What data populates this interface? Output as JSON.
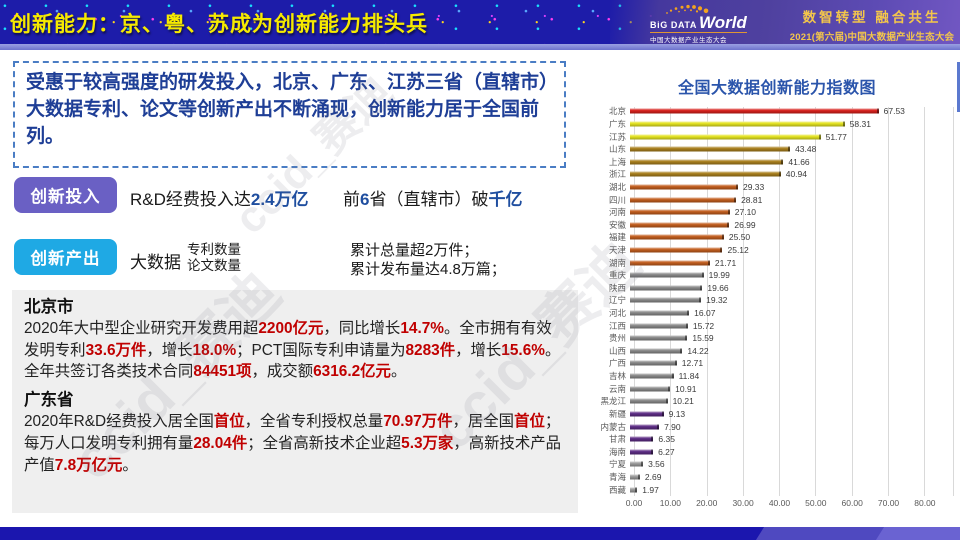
{
  "colors": {
    "red": "#c00000",
    "blue": "#1f4e9f",
    "badge_invest": "#6a60c4",
    "badge_output": "#1fa9e4",
    "chart_title": "#2b55ab",
    "header_title": "#f6ea00",
    "slogan": "#f3c64b"
  },
  "header": {
    "title": "创新能力：京、粤、苏成为创新能力排头兵",
    "logo": {
      "big": "BiG DATA",
      "world": "World",
      "subtitle": "中国大数据产业生态大会"
    },
    "slogan_line1": "数智转型 融合共生",
    "slogan_line2": "2021(第六届)中国大数据产业生态大会"
  },
  "intro": {
    "text": "受惠于较高强度的研发投入，北京、广东、江苏三省（直辖市）大数据专利、论文等创新产出不断涌现，创新能力居于全国前列。"
  },
  "investment": {
    "badge": "创新投入",
    "line1": [
      {
        "t": "R&D经费投入达"
      },
      {
        "t": "2.4万亿",
        "s": "blue"
      }
    ],
    "line2": [
      {
        "t": "前"
      },
      {
        "t": "6",
        "s": "blue"
      },
      {
        "t": "省（直辖市）破"
      },
      {
        "t": "千亿",
        "s": "blue"
      }
    ]
  },
  "output": {
    "badge": "创新产出",
    "bigdata_label": "大数据",
    "kind1": "专利数量",
    "kind2": "论文数量",
    "result1": "累计总量超2万件；",
    "result2": "累计发布量达4.8万篇；"
  },
  "beijing": {
    "heading": "北京市",
    "para": [
      {
        "t": "2020年大中型企业研究开发费用超"
      },
      {
        "t": "2200亿元",
        "s": "red"
      },
      {
        "t": "，同比增长"
      },
      {
        "t": "14.7%",
        "s": "red"
      },
      {
        "t": "。全市拥有有效发明专利"
      },
      {
        "t": "33.6万件",
        "s": "red"
      },
      {
        "t": "，增长"
      },
      {
        "t": "18.0%",
        "s": "red"
      },
      {
        "t": "；PCT国际专利申请量为"
      },
      {
        "t": "8283件",
        "s": "red"
      },
      {
        "t": "，增长"
      },
      {
        "t": "15.6%",
        "s": "red"
      },
      {
        "t": "。全年共签订各类技术合同"
      },
      {
        "t": "84451项",
        "s": "red"
      },
      {
        "t": "，成交额"
      },
      {
        "t": "6316.2亿元",
        "s": "red"
      },
      {
        "t": "。"
      }
    ]
  },
  "guangdong": {
    "heading": "广东省",
    "para": [
      {
        "t": "2020年R&D经费投入居全国"
      },
      {
        "t": "首位",
        "s": "red"
      },
      {
        "t": "，全省专利授权总量"
      },
      {
        "t": "70.97万件",
        "s": "red"
      },
      {
        "t": "，居全国"
      },
      {
        "t": "首位",
        "s": "red"
      },
      {
        "t": "；每万人口发明专利拥有量"
      },
      {
        "t": "28.04件",
        "s": "red"
      },
      {
        "t": "；全省高新技术企业超"
      },
      {
        "t": "5.3万家",
        "s": "red"
      },
      {
        "t": "，高新技术产品产值"
      },
      {
        "t": "7.8万亿元",
        "s": "red"
      },
      {
        "t": "。"
      }
    ]
  },
  "watermarks": [
    "ccid_赛迪",
    "ccid_赛迪",
    "ccid_赛迪"
  ],
  "chart_data": {
    "type": "bar",
    "orientation": "horizontal",
    "title": "全国大数据创新能力指数图",
    "xlim": [
      0,
      80
    ],
    "x_ticks": [
      "0.00",
      "10.00",
      "20.00",
      "30.00",
      "40.00",
      "50.00",
      "60.00",
      "70.00",
      "80.00"
    ],
    "grid": true,
    "bars": [
      {
        "label": "北京",
        "value": "67.53",
        "color": "#d8201c"
      },
      {
        "label": "广东",
        "value": "58.31",
        "color": "#e4e320"
      },
      {
        "label": "江苏",
        "value": "51.77",
        "color": "#e4e320"
      },
      {
        "label": "山东",
        "value": "43.48",
        "color": "#a97f1d"
      },
      {
        "label": "上海",
        "value": "41.66",
        "color": "#a97f1d"
      },
      {
        "label": "浙江",
        "value": "40.94",
        "color": "#a97f1d"
      },
      {
        "label": "湖北",
        "value": "29.33",
        "color": "#c35e1e"
      },
      {
        "label": "四川",
        "value": "28.81",
        "color": "#c35e1e"
      },
      {
        "label": "河南",
        "value": "27.10",
        "color": "#c35e1e"
      },
      {
        "label": "安徽",
        "value": "26.99",
        "color": "#c35e1e"
      },
      {
        "label": "福建",
        "value": "25.50",
        "color": "#c35e1e"
      },
      {
        "label": "天津",
        "value": "25.12",
        "color": "#c35e1e"
      },
      {
        "label": "湖南",
        "value": "21.71",
        "color": "#c35e1e"
      },
      {
        "label": "重庆",
        "value": "19.99",
        "color": "#8a8a8a"
      },
      {
        "label": "陕西",
        "value": "19.66",
        "color": "#8a8a8a"
      },
      {
        "label": "辽宁",
        "value": "19.32",
        "color": "#8a8a8a"
      },
      {
        "label": "河北",
        "value": "16.07",
        "color": "#8a8a8a"
      },
      {
        "label": "江西",
        "value": "15.72",
        "color": "#8a8a8a"
      },
      {
        "label": "贵州",
        "value": "15.59",
        "color": "#8a8a8a"
      },
      {
        "label": "山西",
        "value": "14.22",
        "color": "#8a8a8a"
      },
      {
        "label": "广西",
        "value": "12.71",
        "color": "#8a8a8a"
      },
      {
        "label": "吉林",
        "value": "11.84",
        "color": "#8a8a8a"
      },
      {
        "label": "云南",
        "value": "10.91",
        "color": "#8a8a8a"
      },
      {
        "label": "黑龙江",
        "value": "10.21",
        "color": "#8a8a8a"
      },
      {
        "label": "新疆",
        "value": "9.13",
        "color": "#5d2c85"
      },
      {
        "label": "内蒙古",
        "value": "7.90",
        "color": "#5d2c85"
      },
      {
        "label": "甘肃",
        "value": "6.35",
        "color": "#5d2c85"
      },
      {
        "label": "海南",
        "value": "6.27",
        "color": "#5d2c85"
      },
      {
        "label": "宁夏",
        "value": "3.56",
        "color": "#9b9b9b"
      },
      {
        "label": "青海",
        "value": "2.69",
        "color": "#9b9b9b"
      },
      {
        "label": "西藏",
        "value": "1.97",
        "color": "#9b9b9b"
      }
    ]
  }
}
